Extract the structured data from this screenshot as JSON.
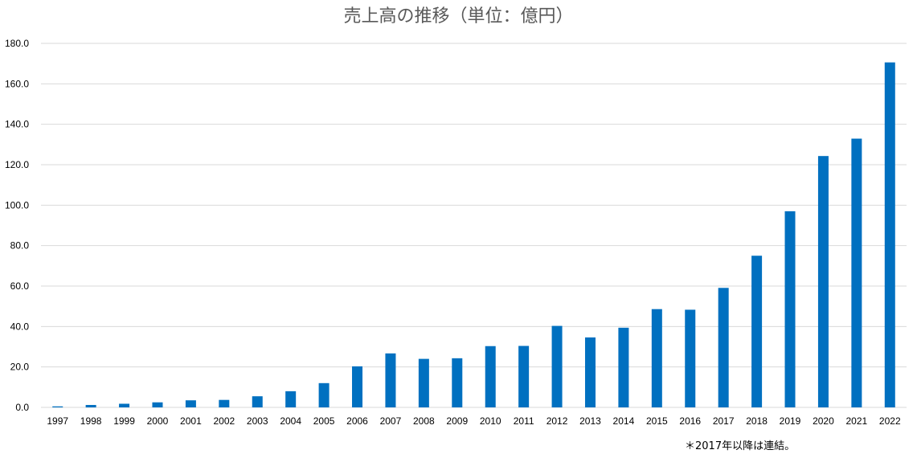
{
  "chart_data": {
    "type": "bar",
    "title": "売上高の推移（単位：億円）",
    "note": "＊2017年以降は連結。",
    "categories": [
      "1997",
      "1998",
      "1999",
      "2000",
      "2001",
      "2002",
      "2003",
      "2004",
      "2005",
      "2006",
      "2007",
      "2008",
      "2009",
      "2010",
      "2011",
      "2012",
      "2013",
      "2014",
      "2015",
      "2016",
      "2017",
      "2018",
      "2019",
      "2020",
      "2021",
      "2022"
    ],
    "values": [
      0.5,
      1.2,
      1.8,
      2.5,
      3.5,
      3.7,
      5.5,
      8.0,
      12.0,
      20.3,
      26.7,
      24.0,
      24.3,
      30.3,
      30.4,
      40.3,
      34.6,
      39.4,
      48.6,
      48.3,
      59.1,
      75.0,
      97.0,
      124.3,
      132.9,
      170.6
    ],
    "yticks": [
      "0.0",
      "20.0",
      "40.0",
      "60.0",
      "80.0",
      "100.0",
      "120.0",
      "140.0",
      "160.0",
      "180.0"
    ],
    "ylim": [
      0,
      180
    ],
    "xlabel": "",
    "ylabel": "",
    "grid": true,
    "legend": "none",
    "bar_color": "#0070C0",
    "grid_color": "#D9D9D9"
  }
}
